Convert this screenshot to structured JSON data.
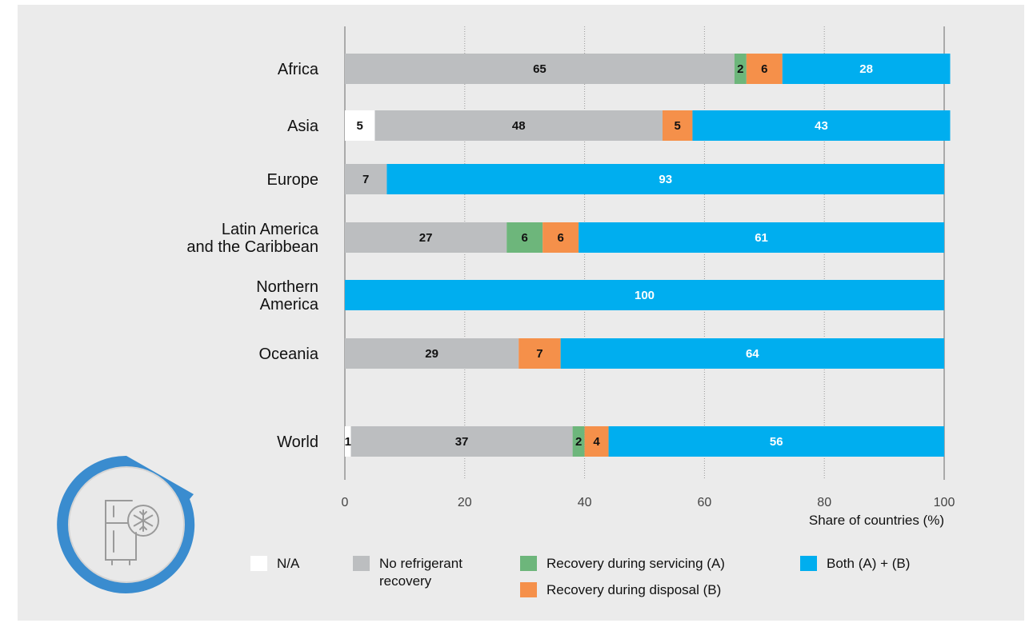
{
  "colors": {
    "background": "#ebebeb",
    "na": "#ffffff",
    "no_recovery": "#bcbec0",
    "servicing": "#6db67b",
    "disposal": "#f5904a",
    "both": "#00aeef",
    "grid": "#999999",
    "axis": "#aaaaaa",
    "icon_ring": "#3a8ccf",
    "icon_inner": "#e9e9e9"
  },
  "icon": {
    "name": "refrigerator-snowflake-icon"
  },
  "chart_data": {
    "type": "bar",
    "orientation": "horizontal",
    "stacked": true,
    "categories": [
      "Africa",
      "Asia",
      "Europe",
      "Latin America and the Caribbean",
      "Northern America",
      "Oceania",
      "World"
    ],
    "category_lines": [
      [
        "Africa"
      ],
      [
        "Asia"
      ],
      [
        "Europe"
      ],
      [
        "Latin America",
        "and the Caribbean"
      ],
      [
        "Northern",
        "America"
      ],
      [
        "Oceania"
      ],
      [
        "World"
      ]
    ],
    "series": [
      {
        "key": "na",
        "name": "N/A",
        "values": [
          0,
          5,
          0,
          0,
          0,
          0,
          1
        ],
        "label_color": "#111111"
      },
      {
        "key": "no_recovery",
        "name": "No refrigerant recovery",
        "values": [
          65,
          48,
          7,
          27,
          0,
          29,
          37
        ],
        "label_color": "#111111"
      },
      {
        "key": "servicing",
        "name": "Recovery during servicing (A)",
        "values": [
          2,
          0,
          0,
          6,
          0,
          0,
          2
        ],
        "label_color": "#111111"
      },
      {
        "key": "disposal",
        "name": "Recovery during disposal (B)",
        "values": [
          6,
          5,
          0,
          6,
          0,
          7,
          4
        ],
        "label_color": "#111111"
      },
      {
        "key": "both",
        "name": "Both (A) + (B)",
        "values": [
          28,
          43,
          93,
          61,
          100,
          64,
          56
        ],
        "label_color": "#ffffff"
      }
    ],
    "xlim": [
      0,
      100
    ],
    "xticks": [
      0,
      20,
      40,
      60,
      80,
      100
    ],
    "xlabel": "Share of countries (%)",
    "grid": "vertical dotted",
    "legend_position": "bottom"
  },
  "legend": [
    {
      "key": "na",
      "lines": [
        "N/A"
      ]
    },
    {
      "key": "no_recovery",
      "lines": [
        "No refrigerant",
        "recovery"
      ]
    },
    {
      "key": "servicing",
      "lines": [
        "Recovery during servicing (A)"
      ]
    },
    {
      "key": "disposal",
      "lines": [
        "Recovery during disposal (B)"
      ]
    },
    {
      "key": "both",
      "lines": [
        "Both (A) + (B)"
      ]
    }
  ]
}
